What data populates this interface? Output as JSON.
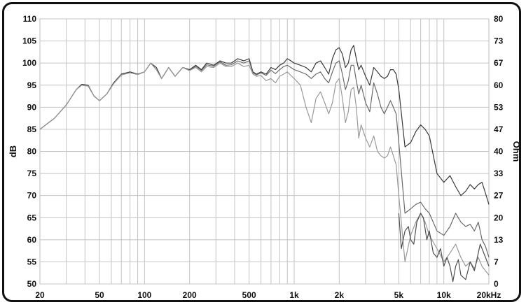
{
  "chart_data": {
    "type": "line",
    "title": "",
    "x_scale": "log",
    "xlim": [
      20,
      20000
    ],
    "ylim": [
      50,
      110
    ],
    "ylabel": "dB",
    "y2label": "Ohm",
    "y2lim": [
      0,
      80
    ],
    "grid": true,
    "x_tick_labels": [
      "20",
      "50",
      "100",
      "200",
      "500",
      "1k",
      "2k",
      "5k",
      "10k",
      "20kHz"
    ],
    "x_tick_values": [
      20,
      50,
      100,
      200,
      500,
      1000,
      2000,
      5000,
      10000,
      20000
    ],
    "y_tick_labels": [
      "110",
      "105",
      "100",
      "95",
      "90",
      "85",
      "80",
      "75",
      "70",
      "65",
      "60",
      "55",
      "50"
    ],
    "y_tick_values": [
      110,
      105,
      100,
      95,
      90,
      85,
      80,
      75,
      70,
      65,
      60,
      55,
      50
    ],
    "y2_tick_labels": [
      "80",
      "73",
      "67",
      "60",
      "53",
      "47",
      "40",
      "33",
      "27",
      "20",
      "13",
      "7",
      "0"
    ],
    "series": [
      {
        "color": "#3a3a3a",
        "x": [
          20,
          25,
          30,
          35,
          38,
          42,
          46,
          50,
          56,
          62,
          70,
          80,
          90,
          100,
          110,
          120,
          130,
          145,
          160,
          180,
          200,
          220,
          240,
          260,
          290,
          320,
          350,
          380,
          420,
          460,
          500,
          530,
          560,
          600,
          650,
          700,
          750,
          800,
          850,
          900,
          950,
          1000,
          1100,
          1200,
          1300,
          1400,
          1500,
          1600,
          1700,
          1800,
          1900,
          2000,
          2100,
          2200,
          2300,
          2400,
          2500,
          2600,
          2700,
          2800,
          3000,
          3200,
          3400,
          3600,
          3800,
          4000,
          4200,
          4400,
          4600,
          4800,
          5000,
          5500,
          6000,
          6500,
          7000,
          7500,
          8000,
          9000,
          10000,
          11000,
          12000,
          13000,
          14000,
          15000,
          16000,
          17000,
          18000,
          19000,
          20000
        ],
        "values": [
          85,
          87.5,
          90.5,
          94,
          95.2,
          95,
          92.5,
          91.5,
          93,
          95.5,
          97.5,
          98,
          97.5,
          98,
          100,
          99,
          96.5,
          99,
          97,
          99,
          98.5,
          99.5,
          98.5,
          100,
          99.5,
          100.5,
          100,
          100,
          101,
          100.5,
          101,
          98,
          97.5,
          98,
          97.5,
          99,
          98.5,
          99.5,
          100,
          101,
          100.5,
          100,
          99.5,
          99,
          98,
          100,
          100.5,
          99,
          97.5,
          101,
          103,
          103.5,
          102,
          99,
          100,
          103,
          104,
          101,
          98.5,
          99.5,
          97,
          95,
          99,
          98,
          97,
          96.5,
          97,
          98.5,
          98.5,
          97.5,
          94,
          81,
          82,
          84.5,
          86,
          85,
          83.5,
          75,
          73,
          74.5,
          72,
          70,
          71,
          72.5,
          71.5,
          72.5,
          73,
          70.5,
          68
        ]
      },
      {
        "color": "#6a6a6a",
        "x": [
          20,
          25,
          30,
          35,
          38,
          42,
          46,
          50,
          56,
          62,
          70,
          80,
          90,
          100,
          110,
          120,
          130,
          145,
          160,
          180,
          200,
          220,
          240,
          260,
          290,
          320,
          350,
          380,
          420,
          460,
          500,
          530,
          560,
          600,
          650,
          700,
          750,
          800,
          850,
          900,
          950,
          1000,
          1100,
          1200,
          1300,
          1400,
          1500,
          1600,
          1700,
          1800,
          1900,
          2000,
          2100,
          2200,
          2300,
          2400,
          2500,
          2600,
          2700,
          2800,
          3000,
          3200,
          3400,
          3600,
          3800,
          4000,
          4200,
          4400,
          4600,
          4800,
          5000,
          5500,
          6000,
          6500,
          7000,
          7500,
          8000,
          9000,
          10000,
          11000,
          12000,
          13000,
          14000,
          15000,
          16000,
          17000,
          18000,
          19000,
          20000
        ],
        "values": [
          85,
          87.5,
          90.5,
          94,
          95,
          94.8,
          92.5,
          91.5,
          93,
          95.3,
          97.3,
          97.8,
          97.4,
          98,
          100,
          98.5,
          96.5,
          99,
          97,
          99,
          98.3,
          99.3,
          98.3,
          99.6,
          99.3,
          100.3,
          99.5,
          99.6,
          100.5,
          100,
          100.5,
          97.8,
          97.3,
          97.8,
          97.2,
          98.4,
          97.6,
          98.5,
          99.2,
          99.5,
          99,
          98.5,
          98,
          97.5,
          96.5,
          97.5,
          98,
          96.5,
          95.5,
          98,
          100,
          100.5,
          97.5,
          94,
          96,
          99.5,
          99.5,
          96,
          93,
          95,
          91,
          89,
          95.5,
          93,
          90,
          88.5,
          90,
          91.5,
          90,
          88.5,
          82,
          66,
          67,
          68,
          68.5,
          67,
          66,
          62,
          61,
          63,
          66,
          64,
          63,
          63.5,
          62,
          64,
          60,
          58.5,
          56
        ]
      },
      {
        "color": "#9a9a9a",
        "x": [
          20,
          25,
          30,
          35,
          38,
          42,
          46,
          50,
          56,
          62,
          70,
          80,
          90,
          100,
          110,
          120,
          130,
          145,
          160,
          180,
          200,
          220,
          240,
          260,
          290,
          320,
          350,
          380,
          420,
          460,
          500,
          530,
          560,
          600,
          650,
          700,
          750,
          800,
          850,
          900,
          950,
          1000,
          1100,
          1200,
          1300,
          1400,
          1500,
          1600,
          1700,
          1800,
          1900,
          2000,
          2100,
          2200,
          2300,
          2400,
          2500,
          2600,
          2700,
          2800,
          3000,
          3200,
          3400,
          3600,
          3800,
          4000,
          4200,
          4400,
          4600,
          4800,
          5000,
          5500,
          6000,
          6500,
          7000,
          7500,
          8000,
          9000,
          10000,
          11000,
          12000,
          13000,
          14000,
          15000,
          16000,
          17000,
          18000,
          19000,
          20000
        ],
        "values": [
          85,
          87.5,
          90.5,
          94,
          95,
          94.8,
          92.5,
          91.5,
          93,
          95.3,
          97.3,
          97.8,
          97.4,
          98,
          100,
          98.5,
          96.5,
          99,
          97,
          99,
          98.3,
          99,
          98,
          99.2,
          99,
          100,
          99.2,
          99.2,
          100,
          99.2,
          99.5,
          97.5,
          97,
          97.2,
          96,
          96.5,
          95.5,
          97,
          97.5,
          98,
          97.2,
          96.5,
          95,
          90,
          86.5,
          92,
          93.5,
          91,
          88.5,
          91,
          95.5,
          96.5,
          92,
          86.5,
          89,
          94,
          94.5,
          90,
          83,
          86,
          83,
          81,
          83.5,
          80,
          79,
          78.5,
          79,
          81,
          79,
          77,
          70,
          55,
          61,
          64,
          66,
          64,
          61,
          58,
          55,
          57,
          59,
          56,
          54,
          55,
          53.5,
          56,
          54,
          53,
          52
        ]
      },
      {
        "color": "#4e4e4e",
        "x": [
          5000,
          5200,
          5500,
          5800,
          6000,
          6300,
          6600,
          7000,
          7300,
          7700,
          8000,
          8500,
          9000,
          9500,
          10000,
          10500,
          11000,
          11500,
          12000,
          12500,
          13000,
          14000,
          15000,
          16000,
          17000,
          17500,
          18000,
          19000,
          20000
        ],
        "values": [
          66,
          58,
          62,
          63,
          60,
          59,
          64,
          66,
          65,
          60,
          62,
          57,
          56,
          58,
          54,
          56,
          54,
          50.5,
          54,
          55.5,
          52,
          51,
          55,
          53,
          57,
          59,
          58,
          56,
          54
        ]
      }
    ]
  }
}
